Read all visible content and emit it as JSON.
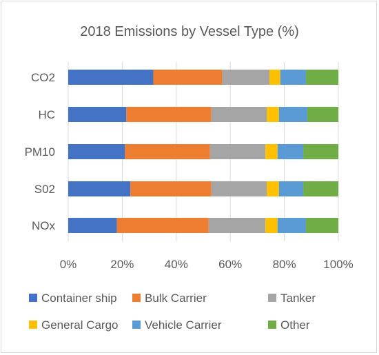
{
  "chart_data": {
    "type": "bar",
    "orientation": "horizontal",
    "stacked": "percent",
    "title": "2018 Emissions by Vessel Type (%)",
    "categories": [
      "CO2",
      "HC",
      "PM10",
      "S02",
      "NOx"
    ],
    "series": [
      {
        "name": "Container ship",
        "color": "#4472C4",
        "values": [
          31.5,
          21.5,
          21.0,
          23.0,
          18.0
        ]
      },
      {
        "name": "Bulk Carrier",
        "color": "#ED7D31",
        "values": [
          25.5,
          31.5,
          31.5,
          30.0,
          34.0
        ]
      },
      {
        "name": "Tanker",
        "color": "#A5A5A5",
        "values": [
          17.5,
          20.5,
          20.5,
          20.5,
          21.0
        ]
      },
      {
        "name": "General Cargo",
        "color": "#FFC000",
        "values": [
          4.0,
          4.5,
          4.5,
          4.5,
          4.5
        ]
      },
      {
        "name": "Vehicle Carrier",
        "color": "#5B9BD5",
        "values": [
          9.5,
          10.5,
          9.5,
          9.0,
          10.5
        ]
      },
      {
        "name": "Other",
        "color": "#70AD47",
        "values": [
          12.0,
          11.5,
          13.0,
          13.0,
          12.0
        ]
      }
    ],
    "x_ticks": [
      "0%",
      "20%",
      "40%",
      "60%",
      "80%",
      "100%"
    ],
    "xlim": [
      0,
      100
    ],
    "grid": true,
    "legend_position": "bottom"
  }
}
